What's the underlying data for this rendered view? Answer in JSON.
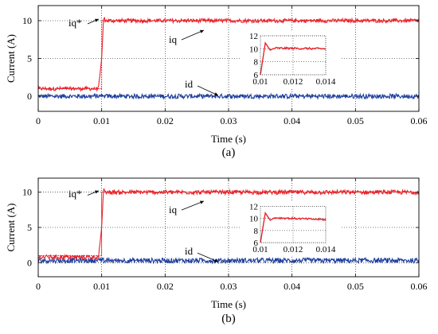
{
  "chart_data": [
    {
      "type": "line",
      "panel_label": "(a)",
      "xlabel": "Time (s)",
      "ylabel": "Current (A)",
      "xlim": [
        0,
        0.06
      ],
      "ylim": [
        -2,
        12
      ],
      "xticks": [
        "0",
        "0.01",
        "0.02",
        "0.03",
        "0.04",
        "0.05",
        "0.06"
      ],
      "yticks": [
        "0",
        "5",
        "10"
      ],
      "grid": true,
      "series": [
        {
          "name": "iq*",
          "color": "#e8232a",
          "step_time": 0.01,
          "values_before": 1,
          "values_after": 10
        },
        {
          "name": "iq",
          "color": "#e8232a",
          "x": [
            0,
            0.0095,
            0.01,
            0.0103,
            0.0106,
            0.06
          ],
          "y": [
            1,
            1,
            5,
            10.4,
            10,
            10
          ],
          "noise_amplitude": 0.25
        },
        {
          "name": "id",
          "color": "#1e3fa0",
          "x": [
            0,
            0.06
          ],
          "y": [
            0,
            0
          ],
          "noise_amplitude": 0.3
        }
      ],
      "annotations": [
        "iq*",
        "iq",
        "id"
      ],
      "inset": {
        "xlim": [
          0.01,
          0.014
        ],
        "ylim": [
          6,
          12
        ],
        "xticks": [
          "0.01",
          "0.012",
          "0.014"
        ],
        "yticks": [
          "6",
          "8",
          "10",
          "12"
        ],
        "series": [
          {
            "name": "iq",
            "x": [
              0.01,
              0.0103,
              0.0106,
              0.0109,
              0.014
            ],
            "y": [
              6,
              10.9,
              9.8,
              10.1,
              10
            ]
          }
        ]
      }
    },
    {
      "type": "line",
      "panel_label": "(b)",
      "xlabel": "Time (s)",
      "ylabel": "Current (A)",
      "xlim": [
        0,
        0.06
      ],
      "ylim": [
        -2,
        12
      ],
      "xticks": [
        "0",
        "0.01",
        "0.02",
        "0.03",
        "0.04",
        "0.05",
        "0.06"
      ],
      "yticks": [
        "0",
        "5",
        "10"
      ],
      "grid": true,
      "series": [
        {
          "name": "iq*",
          "color": "#e8232a",
          "step_time": 0.01,
          "values_before": 1,
          "values_after": 10
        },
        {
          "name": "iq",
          "color": "#e8232a",
          "x": [
            0,
            0.0095,
            0.01,
            0.0103,
            0.0106,
            0.06
          ],
          "y": [
            0.8,
            0.8,
            5,
            10.6,
            10,
            10
          ],
          "noise_amplitude": 0.3
        },
        {
          "name": "id",
          "color": "#1e3fa0",
          "x": [
            0,
            0.06
          ],
          "y": [
            0.3,
            0.3
          ],
          "noise_amplitude": 0.35
        }
      ],
      "annotations": [
        "iq*",
        "iq",
        "id"
      ],
      "inset": {
        "xlim": [
          0.01,
          0.014
        ],
        "ylim": [
          6,
          12
        ],
        "xticks": [
          "0.01",
          "0.012",
          "0.014"
        ],
        "yticks": [
          "6",
          "8",
          "10",
          "12"
        ],
        "series": [
          {
            "name": "iq",
            "x": [
              0.01,
              0.0103,
              0.0106,
              0.0109,
              0.014
            ],
            "y": [
              6,
              10.9,
              9.7,
              10.1,
              9.8
            ]
          }
        ]
      }
    }
  ]
}
